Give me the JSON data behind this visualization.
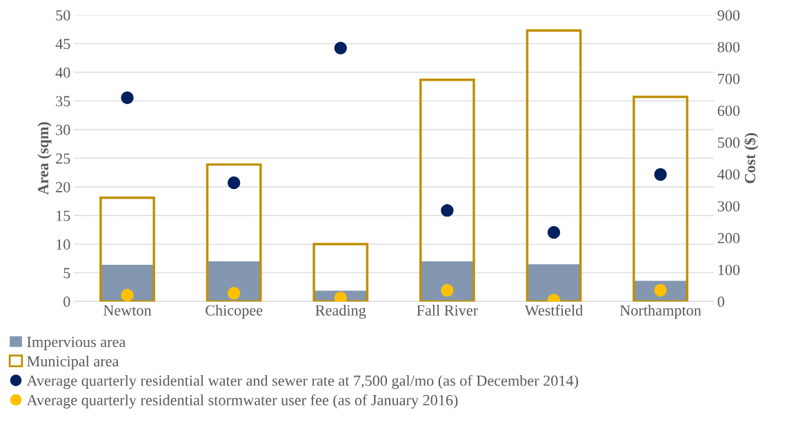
{
  "chart_data": {
    "type": "bar",
    "categories": [
      "Newton",
      "Chicopee",
      "Reading",
      "Fall River",
      "Westfield",
      "Northampton"
    ],
    "ylabel": "Area (sqm)",
    "y2label": "Cost ($)",
    "ylim": [
      0,
      50
    ],
    "yticks": [
      0,
      5,
      10,
      15,
      20,
      25,
      30,
      35,
      40,
      45,
      50
    ],
    "y2lim": [
      0,
      900
    ],
    "y2ticks": [
      0,
      100,
      200,
      300,
      400,
      500,
      600,
      700,
      800,
      900
    ],
    "grid": "y",
    "legend": "bottom",
    "series": [
      {
        "name": "Impervious area",
        "color": "#8497b0",
        "values": [
          6.4,
          7.0,
          1.9,
          7.0,
          6.5,
          3.6
        ]
      },
      {
        "name": "Municipal area",
        "color": "#bf9000",
        "values": [
          18.1,
          23.9,
          10.0,
          38.7,
          47.3,
          35.7
        ]
      },
      {
        "name": "Average quarterly residential water and sewer rate at 7,500 gal/mo (as of December 2014)",
        "type": "scatter",
        "axis": "y2",
        "color": "#002060",
        "marker": "circle",
        "values": [
          640,
          373,
          796,
          286,
          217,
          399
        ]
      },
      {
        "name": "Average quarterly residential stormwater user fee (as of January 2016)",
        "type": "scatter",
        "axis": "y2",
        "color": "#ffc000",
        "marker": "circle",
        "values": [
          20,
          26,
          11,
          35,
          4,
          35
        ]
      }
    ]
  }
}
